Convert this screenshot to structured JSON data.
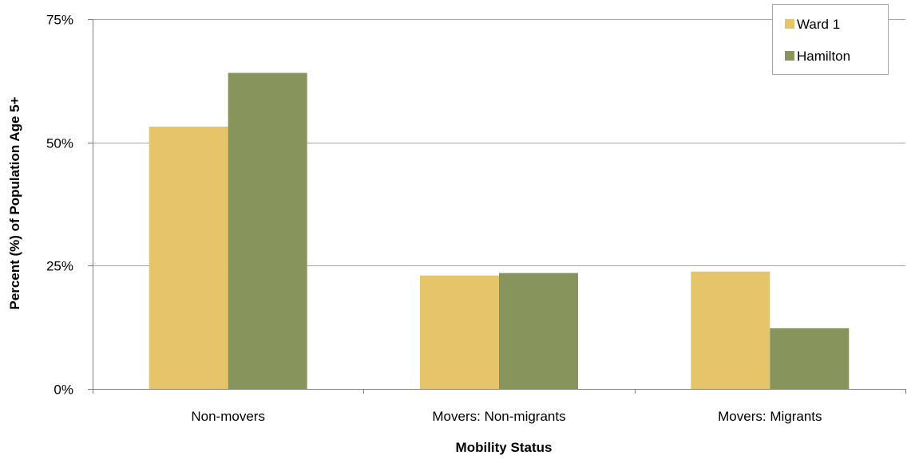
{
  "chart_data": {
    "type": "bar",
    "title": "",
    "xlabel": "Mobility Status",
    "ylabel": "Percent (%) of Population Age 5+",
    "categories": [
      "Non-movers",
      "Movers: Non-migrants",
      "Movers: Migrants"
    ],
    "series": [
      {
        "name": "Ward 1",
        "values": [
          53.2,
          23.0,
          23.8
        ],
        "color": "#e6c46a"
      },
      {
        "name": "Hamilton",
        "values": [
          64.1,
          23.5,
          12.3
        ],
        "color": "#87955d"
      }
    ],
    "ylim": [
      0,
      75
    ],
    "yticks": [
      0,
      25,
      50,
      75
    ],
    "ytick_labels": [
      "0%",
      "25%",
      "50%",
      "75%"
    ],
    "grid": true,
    "legend_position": "top-right"
  }
}
